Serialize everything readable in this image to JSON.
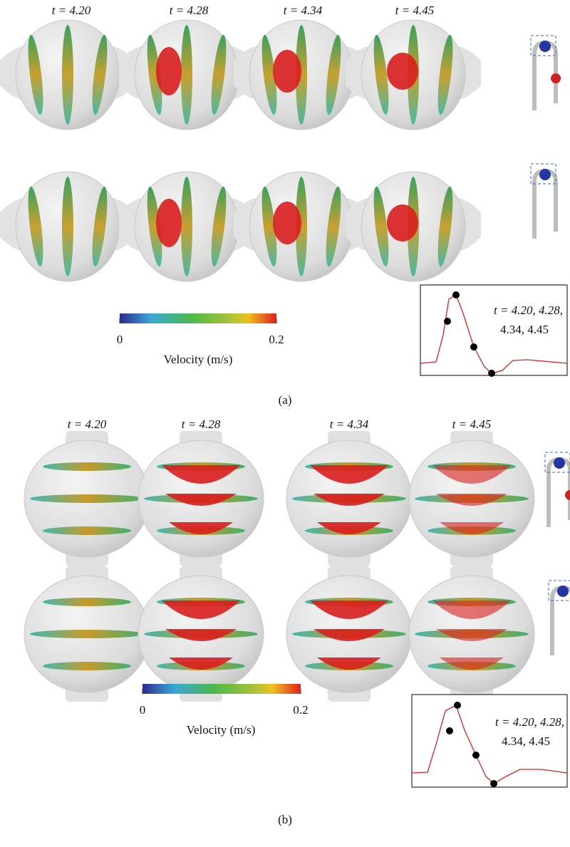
{
  "panels": [
    {
      "time_labels": [
        "t = 4.20",
        "t = 4.28",
        "t = 4.34",
        "t = 4.45"
      ],
      "colorbar": {
        "ticks": [
          0,
          0.2
        ],
        "label": "Velocity (m/s)"
      },
      "inset_text": [
        "t = 4.20,  4.28,",
        "4.34, 4.45"
      ],
      "caption": "(a)"
    },
    {
      "time_labels": [
        "t = 4.20",
        "t = 4.28",
        "t = 4.34",
        "t = 4.45"
      ],
      "colorbar": {
        "ticks": [
          0,
          0.2
        ],
        "label": "Velocity (m/s)"
      },
      "inset_text": [
        "t = 4.20,  4.28,",
        "4.34, 4.45"
      ],
      "caption": "(b)"
    }
  ]
}
